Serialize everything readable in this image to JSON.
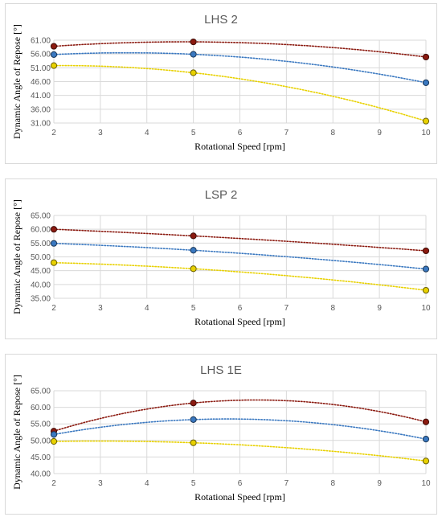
{
  "chart_data": [
    {
      "type": "scatter",
      "title": "LHS 2",
      "xlabel": "Rotational Speed [rpm]",
      "ylabel": "Dynamic Angle of Repose [°]",
      "xlim": [
        2,
        10
      ],
      "ylim": [
        31,
        61
      ],
      "xticks": [
        "2",
        "3",
        "4",
        "5",
        "6",
        "7",
        "8",
        "9",
        "10"
      ],
      "yticks": [
        "31.00",
        "36.00",
        "41.00",
        "46.00",
        "51.00",
        "56.00",
        "61.00"
      ],
      "trendline": "polynomial order 2, dotted",
      "grid": true,
      "legend": "none",
      "series": [
        {
          "color": "#8B1A10",
          "x": [
            2,
            5,
            10
          ],
          "y": [
            58.8,
            60.4,
            54.9
          ]
        },
        {
          "color": "#3A78C0",
          "x": [
            2,
            5,
            10
          ],
          "y": [
            55.8,
            55.9,
            45.6
          ]
        },
        {
          "color": "#E8D100",
          "x": [
            2,
            5,
            10
          ],
          "y": [
            51.8,
            49.2,
            31.7
          ]
        }
      ]
    },
    {
      "type": "scatter",
      "title": "LSP 2",
      "xlabel": "Rotational Speed [rpm]",
      "ylabel": "Dynamic Angle of Repose [°]",
      "xlim": [
        2,
        10
      ],
      "ylim": [
        35,
        65
      ],
      "xticks": [
        "2",
        "3",
        "4",
        "5",
        "6",
        "7",
        "8",
        "9",
        "10"
      ],
      "yticks": [
        "35.00",
        "40.00",
        "45.00",
        "50.00",
        "55.00",
        "60.00",
        "65.00"
      ],
      "trendline": "polynomial order 2, dotted",
      "grid": true,
      "legend": "none",
      "series": [
        {
          "color": "#8B1A10",
          "x": [
            2,
            5,
            10
          ],
          "y": [
            60.0,
            57.6,
            52.2
          ]
        },
        {
          "color": "#3A78C0",
          "x": [
            2,
            5,
            10
          ],
          "y": [
            54.9,
            52.4,
            45.6
          ]
        },
        {
          "color": "#E8D100",
          "x": [
            2,
            5,
            10
          ],
          "y": [
            47.9,
            45.7,
            37.9
          ]
        }
      ]
    },
    {
      "type": "scatter",
      "title": "LHS 1E",
      "xlabel": "Rotational Speed [rpm]",
      "ylabel": "Dynamic Angle of Repose [°]",
      "xlim": [
        2,
        10
      ],
      "ylim": [
        40,
        65
      ],
      "xticks": [
        "2",
        "3",
        "4",
        "5",
        "6",
        "7",
        "8",
        "9",
        "10"
      ],
      "yticks": [
        "40.00",
        "45.00",
        "50.00",
        "55.00",
        "60.00",
        "65.00"
      ],
      "trendline": "polynomial order 2, dotted",
      "grid": true,
      "legend": "none",
      "series": [
        {
          "color": "#8B1A10",
          "x": [
            2,
            5,
            10
          ],
          "y": [
            52.8,
            61.3,
            55.6
          ]
        },
        {
          "color": "#3A78C0",
          "x": [
            2,
            5,
            10
          ],
          "y": [
            51.8,
            56.3,
            50.4
          ]
        },
        {
          "color": "#E8D100",
          "x": [
            2,
            5,
            10
          ],
          "y": [
            49.7,
            49.3,
            43.8
          ]
        }
      ]
    }
  ]
}
